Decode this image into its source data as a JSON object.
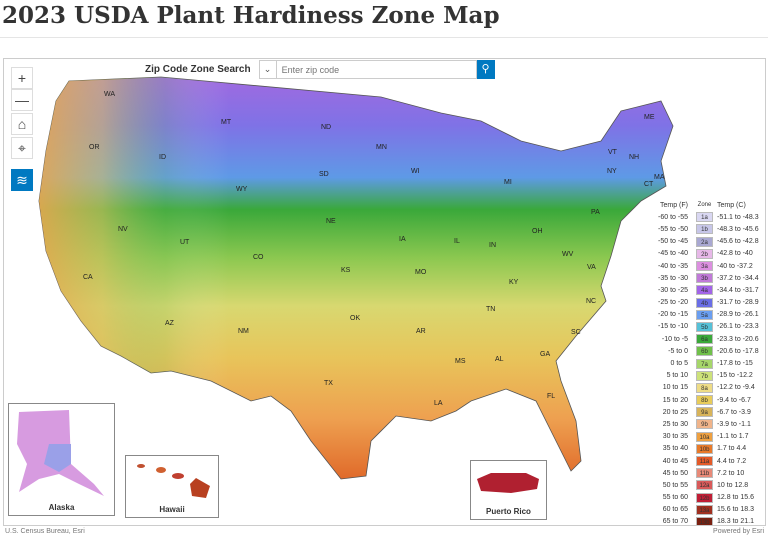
{
  "title": "2023 USDA Plant Hardiness Zone Map",
  "search": {
    "label": "Zip Code Zone Search",
    "placeholder": "Enter zip code",
    "search_icon": "magnifier"
  },
  "controls": {
    "zoom_in": "+",
    "zoom_out": "—",
    "home": "⌂",
    "locate": "⌖",
    "layers": "≋"
  },
  "states": [
    "WA",
    "OR",
    "ID",
    "MT",
    "ND",
    "MN",
    "WI",
    "MI",
    "SD",
    "WY",
    "NE",
    "IA",
    "IL",
    "IN",
    "OH",
    "PA",
    "NY",
    "VT",
    "NH",
    "ME",
    "MA",
    "CT",
    "NV",
    "UT",
    "CO",
    "KS",
    "MO",
    "KY",
    "WV",
    "VA",
    "NC",
    "TN",
    "SC",
    "GA",
    "AL",
    "MS",
    "AR",
    "LA",
    "TX",
    "OK",
    "NM",
    "AZ",
    "CA",
    "FL"
  ],
  "insets": {
    "alaska": "Alaska",
    "hawaii": "Hawaii",
    "puerto_rico": "Puerto Rico"
  },
  "legend": {
    "headers": {
      "f": "Temp (F)",
      "zone": "Zone",
      "c": "Temp (C)"
    },
    "rows": [
      {
        "f": "-60 to -55",
        "zone": "1a",
        "c": "-51.1 to -48.3",
        "color": "#d9d7f2"
      },
      {
        "f": "-55 to -50",
        "zone": "1b",
        "c": "-48.3 to -45.6",
        "color": "#c7c6e8"
      },
      {
        "f": "-50 to -45",
        "zone": "2a",
        "c": "-45.6 to -42.8",
        "color": "#a9a8d2"
      },
      {
        "f": "-45 to -40",
        "zone": "2b",
        "c": "-42.8 to -40",
        "color": "#e7b8e8"
      },
      {
        "f": "-40 to -35",
        "zone": "3a",
        "c": "-40 to -37.2",
        "color": "#dc8fe0"
      },
      {
        "f": "-35 to -30",
        "zone": "3b",
        "c": "-37.2 to -34.4",
        "color": "#c07ad8"
      },
      {
        "f": "-30 to -25",
        "zone": "4a",
        "c": "-34.4 to -31.7",
        "color": "#a264e8"
      },
      {
        "f": "-25 to -20",
        "zone": "4b",
        "c": "-31.7 to -28.9",
        "color": "#6a6ee6"
      },
      {
        "f": "-20 to -15",
        "zone": "5a",
        "c": "-28.9 to -26.1",
        "color": "#6a9ef0"
      },
      {
        "f": "-15 to -10",
        "zone": "5b",
        "c": "-26.1 to -23.3",
        "color": "#56c1d8"
      },
      {
        "f": "-10 to -5",
        "zone": "6a",
        "c": "-23.3 to -20.6",
        "color": "#3aa83a"
      },
      {
        "f": "-5 to 0",
        "zone": "6b",
        "c": "-20.6 to -17.8",
        "color": "#70c04a"
      },
      {
        "f": "0 to 5",
        "zone": "7a",
        "c": "-17.8 to -15",
        "color": "#a6d66a"
      },
      {
        "f": "5 to 10",
        "zone": "7b",
        "c": "-15 to -12.2",
        "color": "#cde27a"
      },
      {
        "f": "10 to 15",
        "zone": "8a",
        "c": "-12.2 to -9.4",
        "color": "#eedc86"
      },
      {
        "f": "15 to 20",
        "zone": "8b",
        "c": "-9.4 to -6.7",
        "color": "#e8cc5a"
      },
      {
        "f": "20 to 25",
        "zone": "9a",
        "c": "-6.7 to -3.9",
        "color": "#d8b45a"
      },
      {
        "f": "25 to 30",
        "zone": "9b",
        "c": "-3.9 to -1.1",
        "color": "#f0b48a"
      },
      {
        "f": "30 to 35",
        "zone": "10a",
        "c": "-1.1 to 1.7",
        "color": "#eea040"
      },
      {
        "f": "35 to 40",
        "zone": "10b",
        "c": "1.7 to 4.4",
        "color": "#e87a2a"
      },
      {
        "f": "40 to 45",
        "zone": "11a",
        "c": "4.4 to 7.2",
        "color": "#e45a28"
      },
      {
        "f": "45 to 50",
        "zone": "11b",
        "c": "7.2 to 10",
        "color": "#e88a78"
      },
      {
        "f": "50 to 55",
        "zone": "12a",
        "c": "10 to 12.8",
        "color": "#d85a5a"
      },
      {
        "f": "55 to 60",
        "zone": "12b",
        "c": "12.8 to 15.6",
        "color": "#c01e36"
      },
      {
        "f": "60 to 65",
        "zone": "13a",
        "c": "15.6 to 18.3",
        "color": "#a03020"
      },
      {
        "f": "65 to 70",
        "zone": "13b",
        "c": "18.3 to 21.1",
        "color": "#7a2010"
      }
    ]
  },
  "footer": {
    "attribution": "U.S. Census Bureau, Esri",
    "powered": "Powered by Esri"
  }
}
